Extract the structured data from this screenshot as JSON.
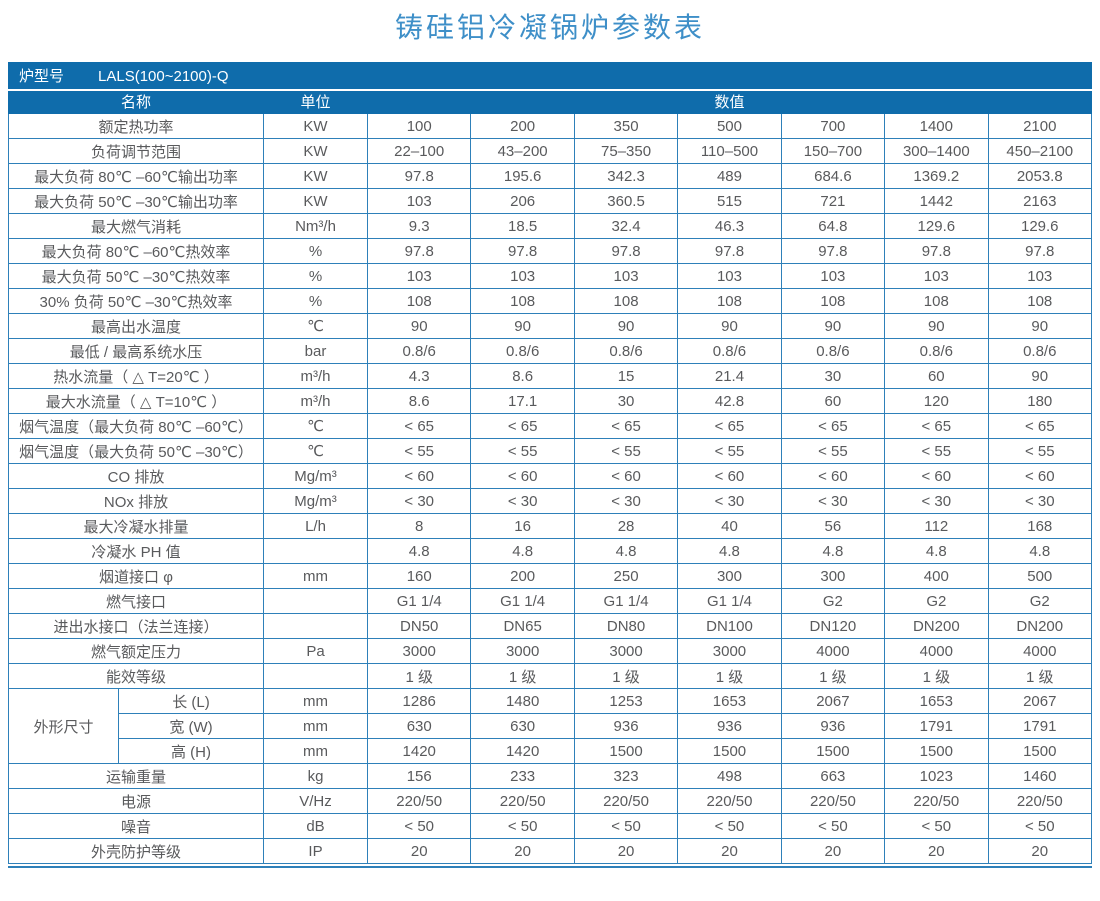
{
  "title": "铸硅铝冷凝锅炉参数表",
  "model_bar": {
    "label": "炉型号",
    "value": "LALS(100~2100)-Q"
  },
  "header": {
    "name": "名称",
    "unit": "单位",
    "value": "数值"
  },
  "colors": {
    "header_bg": "#0f6cab",
    "grid_line": "#2e80b9",
    "title_text": "#3e8fc8",
    "cell_text": "#595a5c"
  },
  "sections": [
    {
      "type": "row",
      "name": "额定热功率",
      "unit": "KW",
      "values": [
        "100",
        "200",
        "350",
        "500",
        "700",
        "1400",
        "2100"
      ]
    },
    {
      "type": "row",
      "name": "负荷调节范围",
      "unit": "KW",
      "values": [
        "22–100",
        "43–200",
        "75–350",
        "110–500",
        "150–700",
        "300–1400",
        "450–2100"
      ]
    },
    {
      "type": "row",
      "name": "最大负荷 80℃ –60℃输出功率",
      "unit": "KW",
      "values": [
        "97.8",
        "195.6",
        "342.3",
        "489",
        "684.6",
        "1369.2",
        "2053.8"
      ]
    },
    {
      "type": "row",
      "name": "最大负荷 50℃ –30℃输出功率",
      "unit": "KW",
      "values": [
        "103",
        "206",
        "360.5",
        "515",
        "721",
        "1442",
        "2163"
      ]
    },
    {
      "type": "row",
      "name": "最大燃气消耗",
      "unit": "Nm³/h",
      "values": [
        "9.3",
        "18.5",
        "32.4",
        "46.3",
        "64.8",
        "129.6",
        "129.6"
      ]
    },
    {
      "type": "row",
      "name": "最大负荷 80℃ –60℃热效率",
      "unit": "%",
      "values": [
        "97.8",
        "97.8",
        "97.8",
        "97.8",
        "97.8",
        "97.8",
        "97.8"
      ]
    },
    {
      "type": "row",
      "name": "最大负荷 50℃ –30℃热效率",
      "unit": "%",
      "values": [
        "103",
        "103",
        "103",
        "103",
        "103",
        "103",
        "103"
      ]
    },
    {
      "type": "row",
      "name": "30% 负荷 50℃ –30℃热效率",
      "unit": "%",
      "values": [
        "108",
        "108",
        "108",
        "108",
        "108",
        "108",
        "108"
      ]
    },
    {
      "type": "row",
      "name": "最高出水温度",
      "unit": "℃",
      "values": [
        "90",
        "90",
        "90",
        "90",
        "90",
        "90",
        "90"
      ]
    },
    {
      "type": "row",
      "name": "最低 / 最高系统水压",
      "unit": "bar",
      "values": [
        "0.8/6",
        "0.8/6",
        "0.8/6",
        "0.8/6",
        "0.8/6",
        "0.8/6",
        "0.8/6"
      ]
    },
    {
      "type": "row",
      "name": "热水流量（ △ T=20℃ ）",
      "unit": "m³/h",
      "values": [
        "4.3",
        "8.6",
        "15",
        "21.4",
        "30",
        "60",
        "90"
      ]
    },
    {
      "type": "row",
      "name": "最大水流量（ △ T=10℃ ）",
      "unit": "m³/h",
      "values": [
        "8.6",
        "17.1",
        "30",
        "42.8",
        "60",
        "120",
        "180"
      ]
    },
    {
      "type": "row",
      "name": "烟气温度（最大负荷 80℃ –60℃）",
      "unit": "℃",
      "values": [
        "< 65",
        "< 65",
        "< 65",
        "< 65",
        "< 65",
        "< 65",
        "< 65"
      ]
    },
    {
      "type": "row",
      "name": "烟气温度（最大负荷 50℃ –30℃）",
      "unit": "℃",
      "values": [
        "< 55",
        "< 55",
        "< 55",
        "< 55",
        "< 55",
        "< 55",
        "< 55"
      ]
    },
    {
      "type": "row",
      "name": "CO 排放",
      "unit": "Mg/m³",
      "values": [
        "< 60",
        "< 60",
        "< 60",
        "< 60",
        "< 60",
        "< 60",
        "< 60"
      ]
    },
    {
      "type": "row",
      "name": "NOx 排放",
      "unit": "Mg/m³",
      "values": [
        "< 30",
        "< 30",
        "< 30",
        "< 30",
        "< 30",
        "< 30",
        "< 30"
      ]
    },
    {
      "type": "row",
      "name": "最大冷凝水排量",
      "unit": "L/h",
      "values": [
        "8",
        "16",
        "28",
        "40",
        "56",
        "112",
        "168"
      ]
    },
    {
      "type": "row",
      "name": "冷凝水 PH 值",
      "unit": "",
      "values": [
        "4.8",
        "4.8",
        "4.8",
        "4.8",
        "4.8",
        "4.8",
        "4.8"
      ]
    },
    {
      "type": "row",
      "name": "烟道接口 φ",
      "unit": "mm",
      "values": [
        "160",
        "200",
        "250",
        "300",
        "300",
        "400",
        "500"
      ]
    },
    {
      "type": "row",
      "name": "燃气接口",
      "unit": "",
      "values": [
        "G1 1/4",
        "G1 1/4",
        "G1 1/4",
        "G1 1/4",
        "G2",
        "G2",
        "G2"
      ]
    },
    {
      "type": "row",
      "name": "进出水接口（法兰连接）",
      "unit": "",
      "values": [
        "DN50",
        "DN65",
        "DN80",
        "DN100",
        "DN120",
        "DN200",
        "DN200"
      ]
    },
    {
      "type": "row",
      "name": "燃气额定压力",
      "unit": "Pa",
      "values": [
        "3000",
        "3000",
        "3000",
        "3000",
        "4000",
        "4000",
        "4000"
      ]
    },
    {
      "type": "row",
      "name": "能效等级",
      "unit": "",
      "values": [
        "1 级",
        "1 级",
        "1 级",
        "1 级",
        "1 级",
        "1 级",
        "1 级"
      ]
    },
    {
      "type": "group",
      "label": "外形尺寸",
      "rows": [
        {
          "name": "长 (L)",
          "unit": "mm",
          "values": [
            "1286",
            "1480",
            "1253",
            "1653",
            "2067",
            "1653",
            "2067"
          ]
        },
        {
          "name": "宽 (W)",
          "unit": "mm",
          "values": [
            "630",
            "630",
            "936",
            "936",
            "936",
            "1791",
            "1791"
          ]
        },
        {
          "name": "高 (H)",
          "unit": "mm",
          "values": [
            "1420",
            "1420",
            "1500",
            "1500",
            "1500",
            "1500",
            "1500"
          ]
        }
      ]
    },
    {
      "type": "row",
      "name": "运输重量",
      "unit": "kg",
      "values": [
        "156",
        "233",
        "323",
        "498",
        "663",
        "1023",
        "1460"
      ]
    },
    {
      "type": "row",
      "name": "电源",
      "unit": "V/Hz",
      "values": [
        "220/50",
        "220/50",
        "220/50",
        "220/50",
        "220/50",
        "220/50",
        "220/50"
      ]
    },
    {
      "type": "row",
      "name": "噪音",
      "unit": "dB",
      "values": [
        "< 50",
        "< 50",
        "< 50",
        "< 50",
        "< 50",
        "< 50",
        "< 50"
      ]
    },
    {
      "type": "row",
      "name": "外壳防护等级",
      "unit": "IP",
      "values": [
        "20",
        "20",
        "20",
        "20",
        "20",
        "20",
        "20"
      ]
    }
  ]
}
